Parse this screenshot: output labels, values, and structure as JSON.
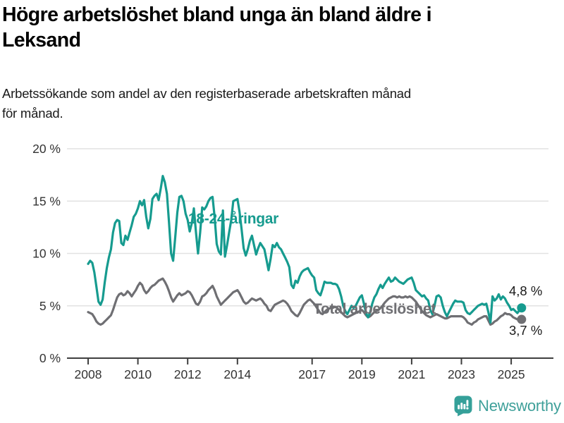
{
  "header": {
    "title": "Högre arbetslöshet bland unga än bland äldre i Leksand",
    "title_lines": [
      "Högre arbetslöshet bland unga än bland äldre i",
      "Leksand"
    ],
    "subtitle": "Arbetssökande som andel av den registerbaserade arbetskraften månad för månad.",
    "subtitle_lines": [
      "Arbetssökande som andel av den registerbaserade arbetskraften månad",
      "för månad."
    ]
  },
  "chart_data": {
    "type": "line",
    "title": "Högre arbetslöshet bland unga än bland äldre i Leksand",
    "subtitle": "Arbetssökande som andel av den registerbaserade arbetskraften månad för månad.",
    "x_unit": "month",
    "x_start": "2008-01",
    "x_end": "2025-06",
    "ylim": [
      0,
      20
    ],
    "grid": "horizontal",
    "y_ticks": [
      {
        "value": 0,
        "label": "0 %"
      },
      {
        "value": 5,
        "label": "5 %"
      },
      {
        "value": 10,
        "label": "10 %"
      },
      {
        "value": 15,
        "label": "15 %"
      },
      {
        "value": 20,
        "label": "20 %"
      }
    ],
    "x_ticks": [
      {
        "year": 2008,
        "label": "2008"
      },
      {
        "year": 2010,
        "label": "2010"
      },
      {
        "year": 2012,
        "label": "2012"
      },
      {
        "year": 2014,
        "label": "2014"
      },
      {
        "year": 2017,
        "label": "2017"
      },
      {
        "year": 2019,
        "label": "2019"
      },
      {
        "year": 2021,
        "label": "2021"
      },
      {
        "year": 2023,
        "label": "2023"
      },
      {
        "year": 2025,
        "label": "2025"
      }
    ],
    "colors": {
      "youth_series": "#169B8F",
      "total_series": "#6F6F73",
      "axis": "#3F3F3F",
      "grid": "#E2E2E2",
      "tick_text": "#333333",
      "end_label_text": "#1A1A1A"
    },
    "series": [
      {
        "name": "18-24-åringar",
        "color": "#169B8F",
        "end_label": "4,8 %",
        "end_value": 4.8,
        "values": [
          9.0,
          9.3,
          9.1,
          8.2,
          6.8,
          5.4,
          5.1,
          5.6,
          7.2,
          8.6,
          9.6,
          10.4,
          12.0,
          12.9,
          13.2,
          13.1,
          11.0,
          10.8,
          11.7,
          11.3,
          12.0,
          12.7,
          13.5,
          13.8,
          14.3,
          15.0,
          14.6,
          15.1,
          13.5,
          12.4,
          13.3,
          15.2,
          15.5,
          15.7,
          15.1,
          16.2,
          17.4,
          16.8,
          15.7,
          13.0,
          10.0,
          9.3,
          11.5,
          13.9,
          15.4,
          15.5,
          15.0,
          13.8,
          13.2,
          12.1,
          12.9,
          14.3,
          12.0,
          10.0,
          12.0,
          14.4,
          14.2,
          14.5,
          15.0,
          15.3,
          15.4,
          13.5,
          10.9,
          10.2,
          9.9,
          14.1,
          9.7,
          10.8,
          12.0,
          13.2,
          15.0,
          15.1,
          15.2,
          14.0,
          12.3,
          10.5,
          9.8,
          10.4,
          11.2,
          11.7,
          10.8,
          9.9,
          10.5,
          11.0,
          10.7,
          10.4,
          9.4,
          8.4,
          9.5,
          10.8,
          10.6,
          11.0,
          10.6,
          10.4,
          10.0,
          9.6,
          9.2,
          8.7,
          7.0,
          6.7,
          7.4,
          7.2,
          7.8,
          8.2,
          8.4,
          8.5,
          8.6,
          8.2,
          7.9,
          7.7,
          6.5,
          6.2,
          6.0,
          6.6,
          7.3,
          7.2,
          7.2,
          7.2,
          7.1,
          7.1,
          7.0,
          6.6,
          5.9,
          5.0,
          4.5,
          4.2,
          4.6,
          5.0,
          4.8,
          5.0,
          5.4,
          5.8,
          6.0,
          5.2,
          4.3,
          3.9,
          4.4,
          5.2,
          5.8,
          6.1,
          6.6,
          7.0,
          6.7,
          7.1,
          7.4,
          7.7,
          7.3,
          7.4,
          7.7,
          7.5,
          7.3,
          7.2,
          7.1,
          7.3,
          7.5,
          7.6,
          7.7,
          7.2,
          6.5,
          6.3,
          6.1,
          5.9,
          6.0,
          5.7,
          5.5,
          4.6,
          4.2,
          5.0,
          5.9,
          6.0,
          5.8,
          5.0,
          4.4,
          4.0,
          4.4,
          4.8,
          5.2,
          5.5,
          5.4,
          5.4,
          5.4,
          5.3,
          4.6,
          4.3,
          4.2,
          4.4,
          4.6,
          4.8,
          5.0,
          5.1,
          5.2,
          5.1,
          5.2,
          4.4,
          3.4,
          5.9,
          5.5,
          5.7,
          6.1,
          5.6,
          5.9,
          5.7,
          5.3,
          5.0,
          4.6,
          4.7,
          4.5,
          4.3,
          4.6,
          4.8
        ]
      },
      {
        "name": "Total arbetslöshet",
        "color": "#6F6F73",
        "end_label": "3,7 %",
        "end_value": 3.7,
        "values": [
          4.4,
          4.3,
          4.2,
          3.9,
          3.5,
          3.3,
          3.2,
          3.3,
          3.5,
          3.7,
          3.9,
          4.1,
          4.6,
          5.2,
          5.8,
          6.1,
          6.2,
          6.0,
          6.1,
          6.4,
          6.2,
          5.9,
          6.2,
          6.5,
          6.9,
          7.2,
          7.0,
          6.5,
          6.2,
          6.4,
          6.7,
          6.9,
          7.0,
          7.2,
          7.4,
          7.5,
          7.6,
          7.3,
          6.9,
          6.4,
          5.8,
          5.4,
          5.7,
          6.0,
          6.2,
          6.0,
          6.1,
          6.2,
          6.4,
          6.3,
          6.0,
          5.6,
          5.2,
          5.1,
          5.4,
          5.9,
          6.0,
          6.2,
          6.5,
          6.7,
          6.9,
          6.5,
          5.9,
          5.5,
          5.1,
          5.3,
          5.5,
          5.7,
          5.9,
          6.1,
          6.3,
          6.4,
          6.5,
          6.2,
          5.8,
          5.4,
          5.2,
          5.3,
          5.5,
          5.7,
          5.6,
          5.5,
          5.6,
          5.7,
          5.5,
          5.2,
          5.0,
          4.6,
          4.5,
          4.8,
          5.1,
          5.2,
          5.3,
          5.4,
          5.5,
          5.4,
          5.2,
          4.9,
          4.5,
          4.3,
          4.1,
          4.0,
          4.3,
          4.7,
          5.1,
          5.3,
          5.5,
          5.6,
          5.4,
          5.2,
          4.9,
          4.6,
          4.3,
          4.2,
          4.4,
          4.6,
          4.7,
          4.8,
          4.8,
          4.9,
          4.8,
          4.6,
          4.4,
          4.2,
          4.0,
          3.9,
          4.0,
          4.1,
          4.2,
          4.3,
          4.4,
          4.5,
          4.6,
          4.4,
          4.1,
          3.9,
          4.0,
          4.2,
          4.4,
          4.5,
          4.6,
          4.8,
          5.0,
          5.3,
          5.5,
          5.7,
          5.8,
          5.9,
          5.9,
          5.8,
          5.9,
          5.8,
          5.8,
          5.9,
          5.8,
          5.9,
          5.8,
          5.6,
          5.4,
          5.1,
          4.8,
          4.5,
          4.3,
          4.1,
          4.0,
          3.9,
          4.0,
          4.1,
          4.2,
          4.1,
          4.0,
          3.9,
          3.8,
          3.8,
          3.9,
          4.0,
          4.0,
          4.0,
          4.0,
          4.0,
          4.0,
          3.9,
          3.7,
          3.4,
          3.3,
          3.2,
          3.4,
          3.5,
          3.7,
          3.8,
          3.9,
          4.0,
          4.0,
          3.6,
          3.2,
          3.3,
          3.5,
          3.6,
          3.8,
          4.0,
          4.1,
          4.3,
          4.2,
          4.2,
          4.1,
          3.9,
          3.8,
          3.7,
          3.6,
          3.7
        ]
      }
    ],
    "legend_position": "inline-labels"
  },
  "footer": {
    "brand": "Newsworthy",
    "icon": "newsworthy-speech-bubble-barchart-icon",
    "brand_color": "#3FA09A",
    "icon_color": "#35A099"
  }
}
